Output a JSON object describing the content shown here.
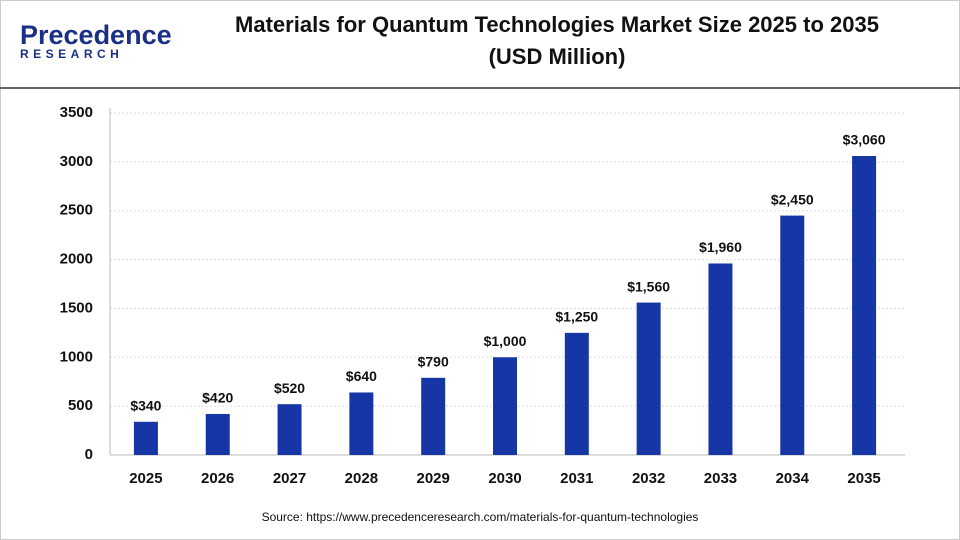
{
  "logo": {
    "name": "Precedence",
    "tagline": "RESEARCH"
  },
  "chart_data": {
    "type": "bar",
    "title": "Materials for Quantum Technologies Market Size 2025 to 2035",
    "subtitle": "(USD Million)",
    "categories": [
      "2025",
      "2026",
      "2027",
      "2028",
      "2029",
      "2030",
      "2031",
      "2032",
      "2033",
      "2034",
      "2035"
    ],
    "values": [
      340,
      420,
      520,
      640,
      790,
      1000,
      1250,
      1560,
      1960,
      2450,
      3060
    ],
    "value_labels": [
      "$340",
      "$420",
      "$520",
      "$640",
      "$790",
      "$1,000",
      "$1,250",
      "$1,560",
      "$1,960",
      "$2,450",
      "$3,060"
    ],
    "color": "#1736a6",
    "ylim": [
      0,
      3500
    ],
    "yticks": [
      0,
      500,
      1000,
      1500,
      2000,
      2500,
      3000,
      3500
    ],
    "grid": true,
    "source": "Source: https://www.precedenceresearch.com/materials-for-quantum-technologies"
  }
}
